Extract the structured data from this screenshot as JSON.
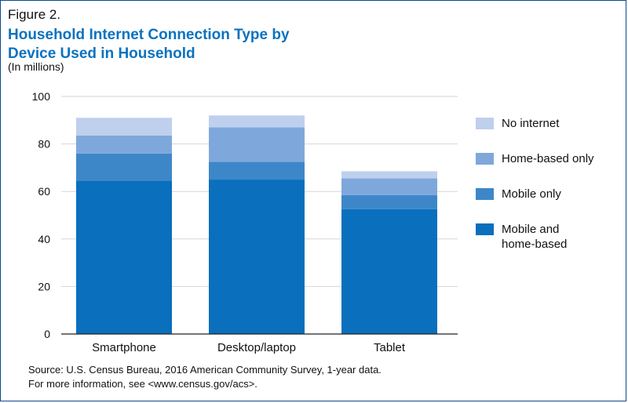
{
  "figure_label": "Figure 2.",
  "title_line1": "Household Internet Connection Type by",
  "title_line2": "Device Used in Household",
  "subtitle": "(In millions)",
  "source_line1": "Source: U.S. Census Bureau, 2016 American Community Survey, 1-year data.",
  "source_line2": "For more information, see <www.census.gov/acs>.",
  "chart_data": {
    "type": "bar",
    "stacked": true,
    "categories": [
      "Smartphone",
      "Desktop/laptop",
      "Tablet"
    ],
    "series": [
      {
        "name": "Mobile and home-based",
        "label_lines": [
          "Mobile and",
          "home-based"
        ],
        "color": "#0a6fbd",
        "values": [
          64.5,
          65.0,
          52.5
        ]
      },
      {
        "name": "Mobile only",
        "label_lines": [
          "Mobile only"
        ],
        "color": "#3d87c9",
        "values": [
          11.5,
          7.5,
          6.0
        ]
      },
      {
        "name": "Home-based only",
        "label_lines": [
          "Home-based only"
        ],
        "color": "#7ea8db",
        "values": [
          7.5,
          14.5,
          7.0
        ]
      },
      {
        "name": "No internet",
        "label_lines": [
          "No internet"
        ],
        "color": "#bed0ed",
        "values": [
          7.5,
          5.0,
          3.0
        ]
      }
    ],
    "ylim": [
      0,
      100
    ],
    "yticks": [
      0,
      20,
      40,
      60,
      80,
      100
    ],
    "grid": true,
    "legend_position": "right"
  }
}
